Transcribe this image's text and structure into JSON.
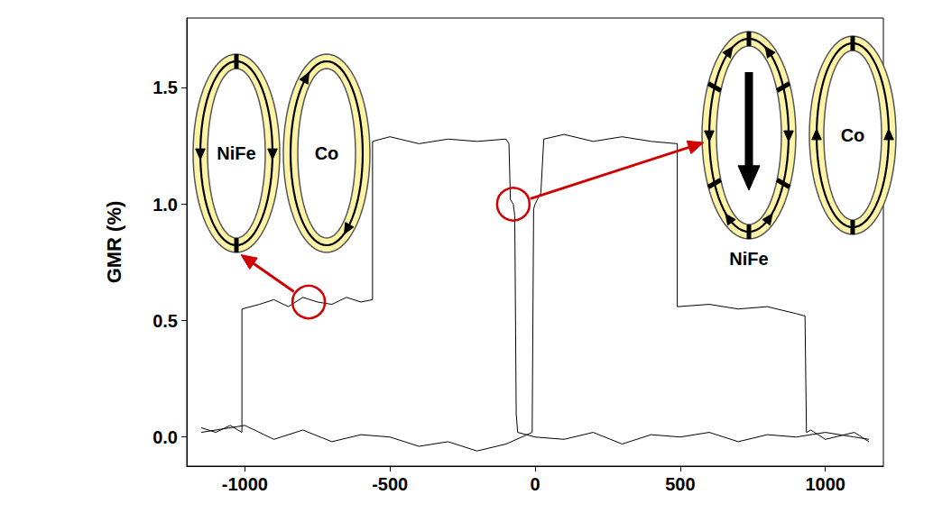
{
  "chart_data": {
    "type": "line",
    "ylabel": "GMR (%)",
    "xlim": [
      -1200,
      1200
    ],
    "xticks": [
      -1000,
      -500,
      0,
      500,
      1000
    ],
    "ylim": [
      -0.125,
      1.8
    ],
    "yticks": [
      {
        "value": 0,
        "label": "0.0"
      },
      {
        "value": 0.5,
        "label": "0.5"
      },
      {
        "value": 1,
        "label": "1.0"
      },
      {
        "value": 1.5,
        "label": "1.5"
      }
    ],
    "grid": false,
    "series": [
      {
        "color": "#000000",
        "x": [
          -1150,
          -1100,
          -1050,
          -1010,
          -1010,
          -950,
          -900,
          -850,
          -800,
          -750,
          -700,
          -650,
          -600,
          -560,
          -560,
          -500,
          -400,
          -300,
          -200,
          -100,
          -90,
          -85,
          -75,
          -70,
          -65,
          -60,
          0,
          100,
          200,
          300,
          400,
          500,
          600,
          700,
          800,
          900,
          1000,
          1100,
          1150
        ],
        "values": [
          0.04,
          0.02,
          0.05,
          0.02,
          0.55,
          0.57,
          0.59,
          0.56,
          0.6,
          0.58,
          0.57,
          0.6,
          0.58,
          0.59,
          1.27,
          1.29,
          1.26,
          1.28,
          1.27,
          1.28,
          1.26,
          1.02,
          1.0,
          0.95,
          0.1,
          0.02,
          0.0,
          -0.01,
          0.02,
          -0.03,
          0.01,
          0.0,
          0.02,
          -0.02,
          0.01,
          0.0,
          0.02,
          0.0,
          -0.01
        ]
      },
      {
        "color": "#000000",
        "x": [
          -1150,
          -1000,
          -900,
          -800,
          -700,
          -600,
          -500,
          -400,
          -300,
          -200,
          -100,
          -10,
          -5,
          0,
          20,
          30,
          100,
          200,
          300,
          400,
          490,
          490,
          600,
          700,
          800,
          900,
          930,
          935,
          950,
          1000,
          1100,
          1150
        ],
        "values": [
          0.02,
          0.05,
          -0.01,
          0.03,
          -0.02,
          0.01,
          0.0,
          -0.04,
          -0.02,
          -0.06,
          -0.03,
          0.02,
          0.98,
          1.0,
          1.05,
          1.28,
          1.3,
          1.27,
          1.29,
          1.27,
          1.26,
          0.56,
          0.57,
          0.55,
          0.56,
          0.53,
          0.52,
          0.02,
          0.03,
          -0.01,
          0.02,
          -0.02
        ]
      }
    ],
    "annotations": [
      {
        "x": -780,
        "y": 0.58,
        "color": "#d00000",
        "labels": [
          "NiFe",
          "Co"
        ]
      },
      {
        "x": -75,
        "y": 1.0,
        "color": "#d00000",
        "labels": [
          "NiFe",
          "Co"
        ]
      }
    ]
  }
}
